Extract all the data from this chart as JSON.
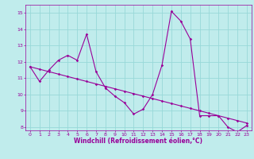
{
  "xlabel": "Windchill (Refroidissement éolien,°C)",
  "bg_color": "#c0ecec",
  "grid_color": "#98d8d8",
  "line_color": "#990099",
  "xlim": [
    -0.5,
    23.5
  ],
  "ylim": [
    7.8,
    15.5
  ],
  "xticks": [
    0,
    1,
    2,
    3,
    4,
    5,
    6,
    7,
    8,
    9,
    10,
    11,
    12,
    13,
    14,
    15,
    16,
    17,
    18,
    19,
    20,
    21,
    22,
    23
  ],
  "yticks": [
    8,
    9,
    10,
    11,
    12,
    13,
    14,
    15
  ],
  "main_x": [
    0,
    1,
    2,
    3,
    4,
    5,
    6,
    7,
    8,
    9,
    10,
    11,
    12,
    13,
    14,
    15,
    16,
    17,
    18,
    19,
    20,
    21,
    22,
    23
  ],
  "main_y": [
    11.7,
    10.8,
    11.5,
    12.1,
    12.4,
    12.1,
    13.7,
    11.4,
    10.4,
    9.9,
    9.5,
    8.8,
    9.1,
    10.0,
    11.8,
    15.1,
    14.5,
    13.4,
    8.7,
    8.7,
    8.7,
    8.0,
    7.7,
    8.1
  ],
  "trend_x": [
    0,
    1,
    2,
    3,
    4,
    5,
    6,
    7,
    8,
    9,
    10,
    11,
    12,
    13,
    14,
    15,
    16,
    17,
    18,
    19,
    20,
    21,
    22,
    23
  ],
  "trend_y": [
    11.7,
    11.55,
    11.4,
    11.25,
    11.1,
    10.95,
    10.8,
    10.65,
    10.5,
    10.35,
    10.2,
    10.05,
    9.9,
    9.75,
    9.6,
    9.45,
    9.3,
    9.15,
    9.0,
    8.85,
    8.7,
    8.55,
    8.4,
    8.25
  ]
}
